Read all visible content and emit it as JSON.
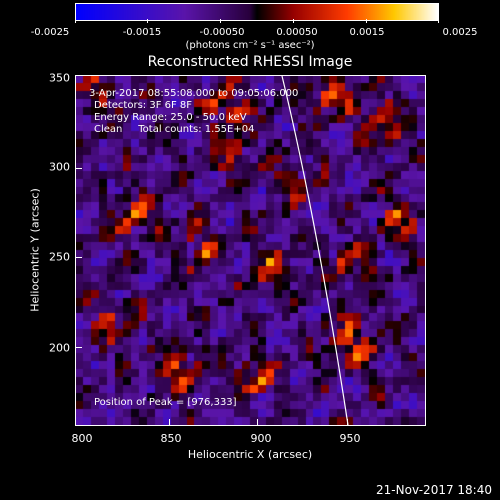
{
  "colorbar": {
    "ticks": [
      "-0.0025",
      "-0.0015",
      "-0.00050",
      "0.00050",
      "0.0015",
      "0.0025"
    ],
    "units": "(photons cm⁻² s⁻¹ asec⁻²)"
  },
  "title": "Reconstructed RHESSI Image",
  "info": {
    "line1": "3-Apr-2017 08:55:08.000 to 09:05:06.000",
    "line2": "Detectors: 3F 6F 8F",
    "line3": "Energy Range: 25.0 - 50.0 keV",
    "line4": "Clean     Total counts: 1.55E+04"
  },
  "peak": "Position of Peak = [976,333]",
  "xaxis": {
    "label": "Heliocentric X (arcsec)",
    "ticks": [
      "800",
      "850",
      "900",
      "950"
    ]
  },
  "yaxis": {
    "label": "Heliocentric Y (arcsec)",
    "ticks": [
      "350",
      "300",
      "250",
      "200"
    ]
  },
  "timestamp": "21-Nov-2017 18:40",
  "colors": {
    "background": "#000000",
    "limb": "#ffffff",
    "low": "#0000ff",
    "mid": "#6a1fb0",
    "high": "#ffffff"
  }
}
